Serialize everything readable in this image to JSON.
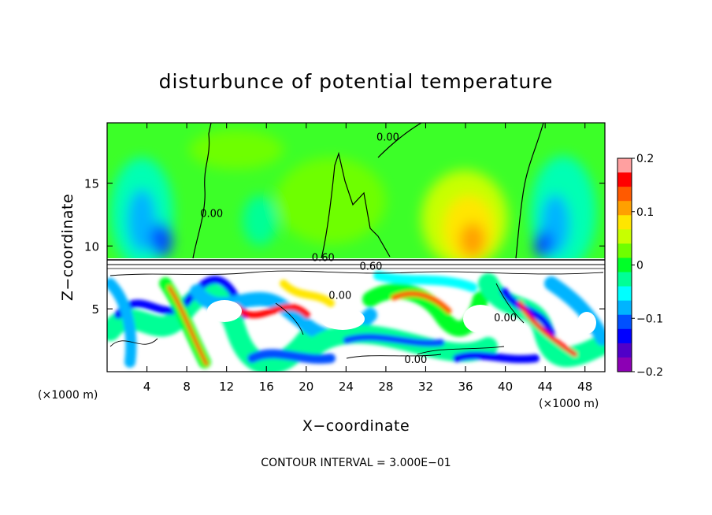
{
  "chart_data": {
    "type": "heatmap",
    "title": "disturbunce of potential temperature",
    "xlabel": "X−coordinate",
    "ylabel": "Z−coordinate",
    "x_unit": "(×1000 m)",
    "y_unit": "(×1000 m)",
    "xlim": [
      0,
      50
    ],
    "ylim": [
      0,
      19.8
    ],
    "x_ticks": [
      4,
      8,
      12,
      16,
      20,
      24,
      28,
      32,
      36,
      40,
      44,
      48
    ],
    "y_ticks": [
      5,
      10,
      15
    ],
    "colorbar": {
      "range": [
        -0.2,
        0.2
      ],
      "tick_values": [
        0.2,
        0.1,
        0,
        -0.1,
        -0.2
      ],
      "tick_labels": [
        "0.2",
        "0.1",
        "0",
        "−0.1",
        "−0.2"
      ],
      "colors": [
        "#ffa0a0",
        "#ff0000",
        "#ff5a00",
        "#ffa000",
        "#ffe600",
        "#c8ff00",
        "#6eff00",
        "#00ff28",
        "#00ff96",
        "#00ffff",
        "#00b4ff",
        "#0050ff",
        "#0000ff",
        "#5000c8",
        "#8c00b4"
      ]
    },
    "field_colors": {
      "upper_layer": "#3cff28",
      "lower_layer_background": "#ffffff"
    },
    "contour_labels": [
      {
        "text": "0.00",
        "x": 10.5,
        "y": 12.3
      },
      {
        "text": "0.00",
        "x": 28.2,
        "y": 18.4
      },
      {
        "text": "0.60",
        "x": 21.7,
        "y": 8.8
      },
      {
        "text": "0.60",
        "x": 26.5,
        "y": 8.1
      },
      {
        "text": "0.00",
        "x": 23.4,
        "y": 5.8
      },
      {
        "text": "0.00",
        "x": 40.0,
        "y": 4.0
      },
      {
        "text": "0.00",
        "x": 31.0,
        "y": 0.7
      }
    ],
    "annotation": "CONTOUR INTERVAL = 3.000E−01"
  }
}
